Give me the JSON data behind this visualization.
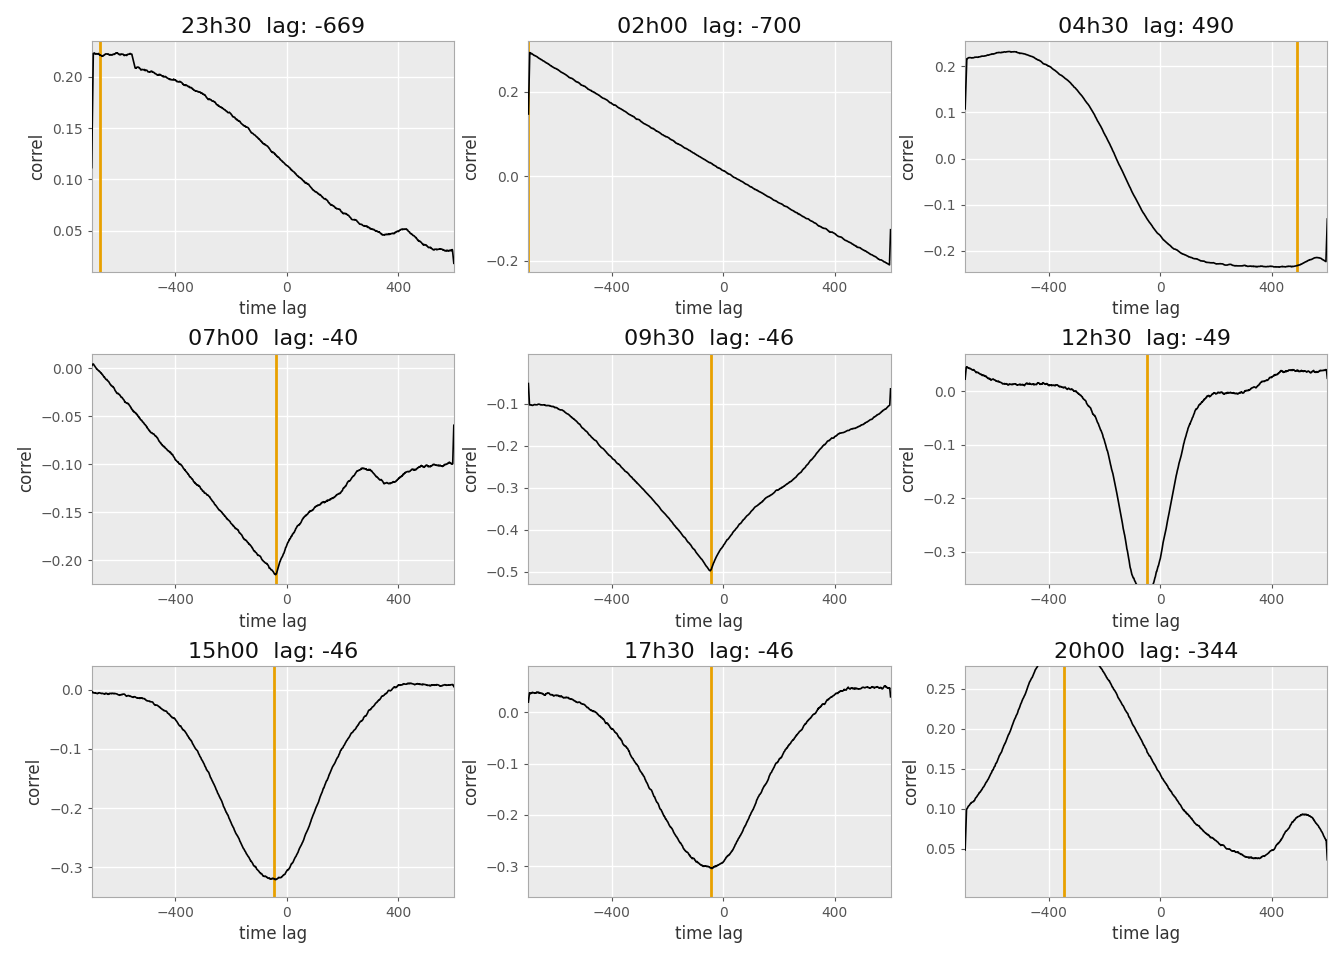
{
  "subplots": [
    {
      "title": "23h30  lag: -669",
      "lag": -669,
      "ylim": [
        0.01,
        0.235
      ],
      "yticks": [
        0.05,
        0.1,
        0.15,
        0.2
      ],
      "xlim": [
        -700,
        600
      ]
    },
    {
      "title": "02h00  lag: -700",
      "lag": -700,
      "ylim": [
        -0.225,
        0.32
      ],
      "yticks": [
        -0.2,
        0.0,
        0.2
      ],
      "xlim": [
        -700,
        600
      ]
    },
    {
      "title": "04h30  lag: 490",
      "lag": 490,
      "ylim": [
        -0.245,
        0.255
      ],
      "yticks": [
        -0.2,
        -0.1,
        0.0,
        0.1,
        0.2
      ],
      "xlim": [
        -700,
        600
      ]
    },
    {
      "title": "07h00  lag: -40",
      "lag": -40,
      "ylim": [
        -0.225,
        0.015
      ],
      "yticks": [
        -0.2,
        -0.15,
        -0.1,
        -0.05,
        0.0
      ],
      "xlim": [
        -700,
        600
      ]
    },
    {
      "title": "09h30  lag: -46",
      "lag": -46,
      "ylim": [
        -0.53,
        0.02
      ],
      "yticks": [
        -0.5,
        -0.4,
        -0.3,
        -0.2,
        -0.1
      ],
      "xlim": [
        -700,
        600
      ]
    },
    {
      "title": "12h30  lag: -49",
      "lag": -49,
      "ylim": [
        -0.36,
        0.07
      ],
      "yticks": [
        -0.3,
        -0.2,
        -0.1,
        0.0
      ],
      "xlim": [
        -700,
        600
      ]
    },
    {
      "title": "15h00  lag: -46",
      "lag": -46,
      "ylim": [
        -0.35,
        0.04
      ],
      "yticks": [
        -0.3,
        -0.2,
        -0.1,
        0.0
      ],
      "xlim": [
        -700,
        600
      ]
    },
    {
      "title": "17h30  lag: -46",
      "lag": -46,
      "ylim": [
        -0.36,
        0.09
      ],
      "yticks": [
        -0.3,
        -0.2,
        -0.1,
        0.0
      ],
      "xlim": [
        -700,
        600
      ]
    },
    {
      "title": "20h00  lag: -344",
      "lag": -344,
      "ylim": [
        -0.01,
        0.278
      ],
      "yticks": [
        0.05,
        0.1,
        0.15,
        0.2,
        0.25
      ],
      "xlim": [
        -700,
        600
      ]
    }
  ],
  "xlabel": "time lag",
  "ylabel": "correl",
  "line_color": "#000000",
  "vline_color": "#E8A000",
  "bg_color": "#EBEBEB",
  "grid_color": "#FFFFFF",
  "title_fontsize": 16,
  "label_fontsize": 12,
  "tick_fontsize": 10,
  "fig_bg": "#FFFFFF"
}
